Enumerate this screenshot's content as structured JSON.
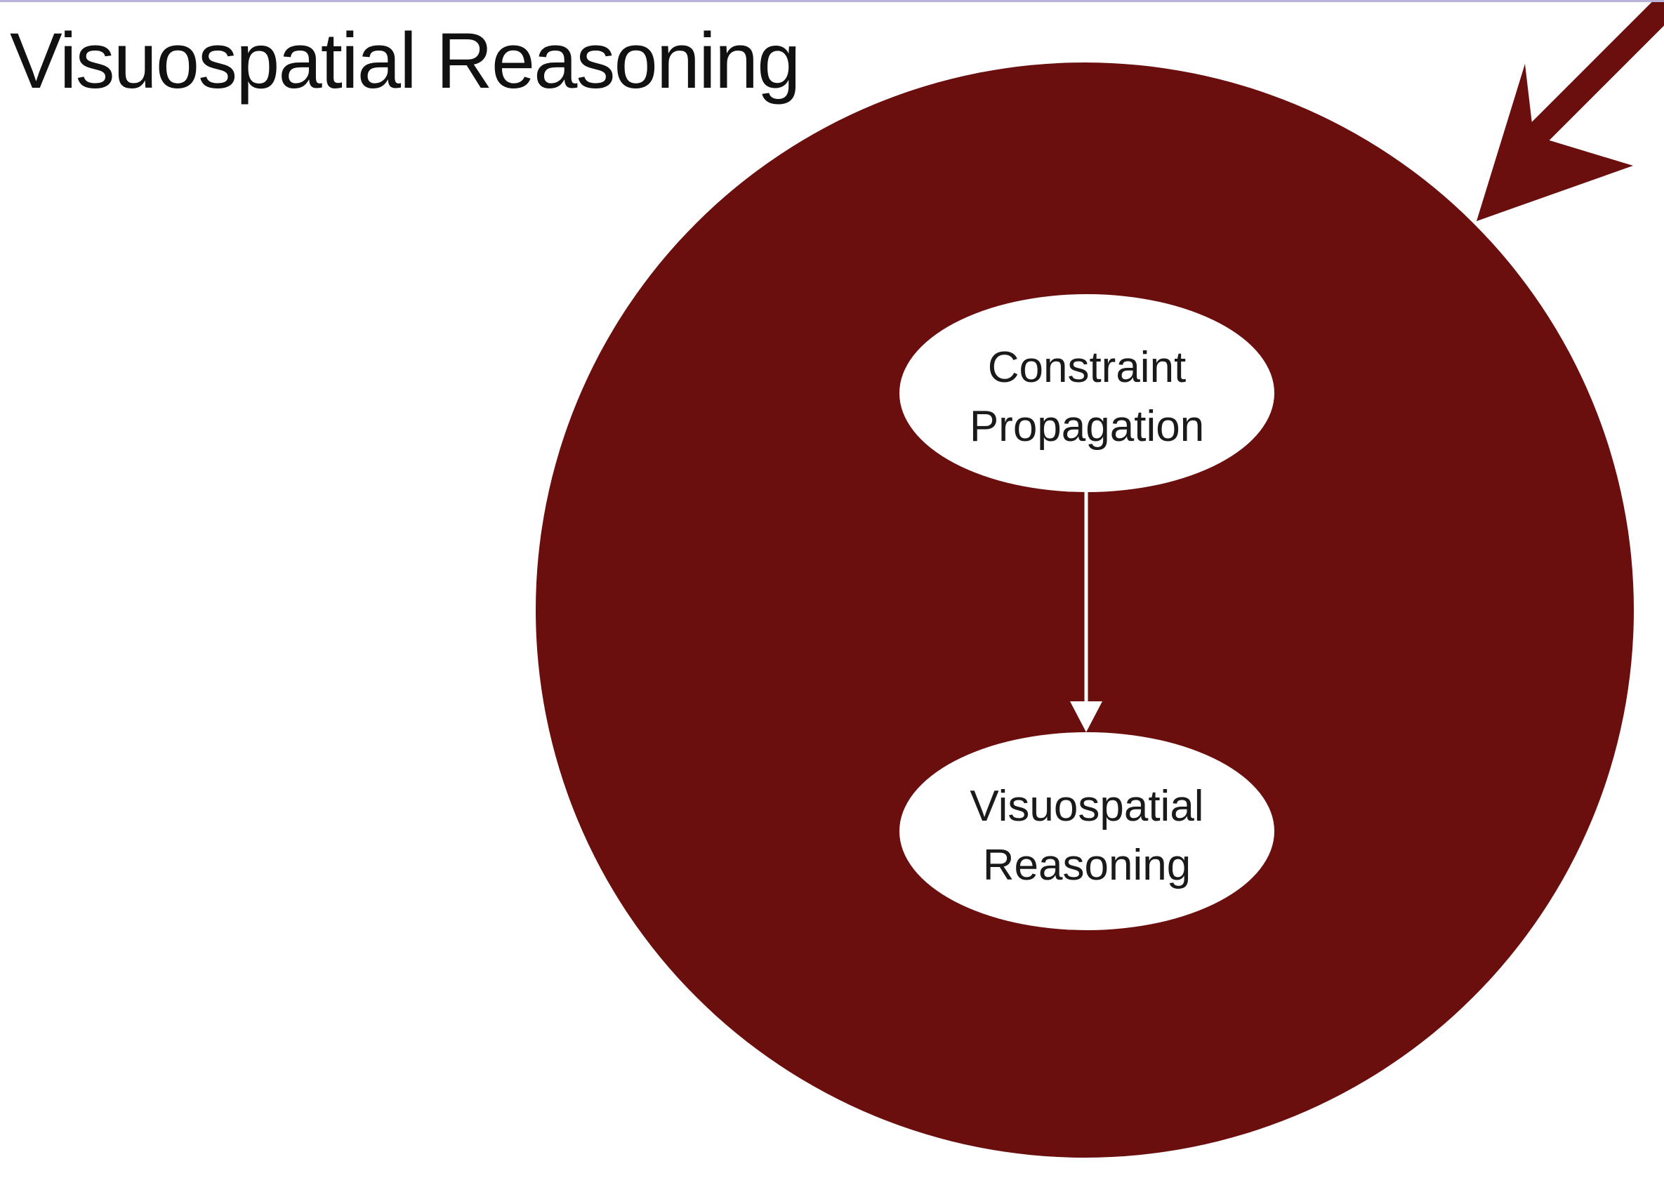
{
  "slide": {
    "title": "Visuospatial Reasoning"
  },
  "diagram": {
    "nodes": [
      {
        "id": "constraint-propagation",
        "lines": [
          "Constraint",
          "Propagation"
        ]
      },
      {
        "id": "visuospatial-reasoning",
        "lines": [
          "Visuospatial",
          "Reasoning"
        ]
      }
    ],
    "edges": [
      {
        "from": "constraint-propagation",
        "to": "visuospatial-reasoning"
      }
    ]
  },
  "colors": {
    "circle_fill": "#6b0e0e",
    "arrow": "#6b0e0e",
    "node_fill": "#ffffff",
    "edge": "#ffffff",
    "title_text": "#111111",
    "top_border": "#b9b3d9"
  }
}
